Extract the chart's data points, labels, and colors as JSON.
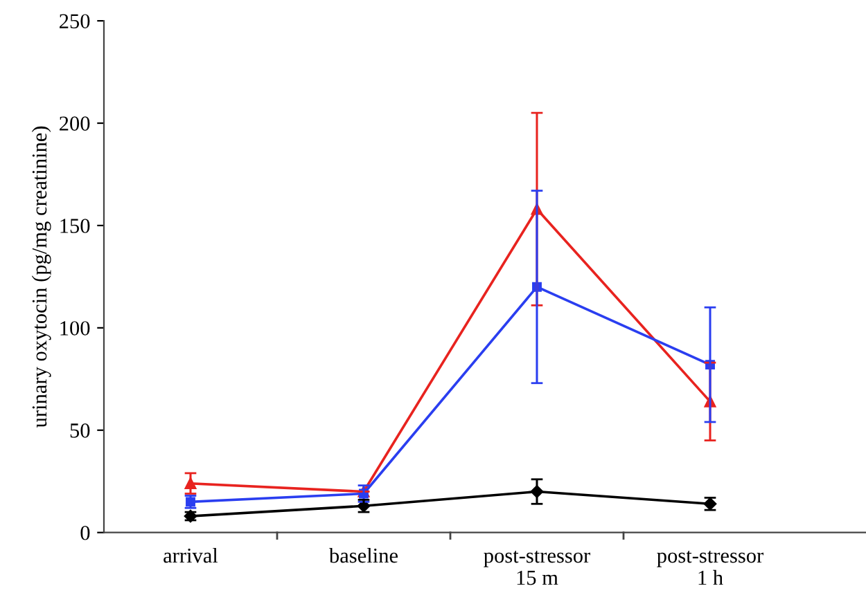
{
  "chart_data": {
    "type": "line",
    "ylabel": "urinary oxytocin (pg/mg creatinine)",
    "categories": [
      "arrival",
      "baseline",
      "post-stressor\n15 m",
      "post-stressor\n1 h"
    ],
    "series": [
      {
        "color": "#e8231f",
        "marker": "triangle",
        "values": [
          24,
          20,
          158,
          64
        ],
        "errors": [
          5,
          null,
          47,
          19
        ]
      },
      {
        "color": "#2a3ef0",
        "marker": "square",
        "values": [
          15,
          19,
          120,
          82
        ],
        "errors": [
          3,
          4,
          47,
          28
        ]
      },
      {
        "color": "#000000",
        "marker": "diamond",
        "values": [
          8,
          13,
          20,
          14
        ],
        "errors": [
          2,
          3,
          6,
          3
        ]
      }
    ],
    "ylim": [
      0,
      250
    ],
    "yticks": [
      0,
      50,
      100,
      150,
      200,
      250
    ],
    "grid": false,
    "line_style": "solid"
  }
}
